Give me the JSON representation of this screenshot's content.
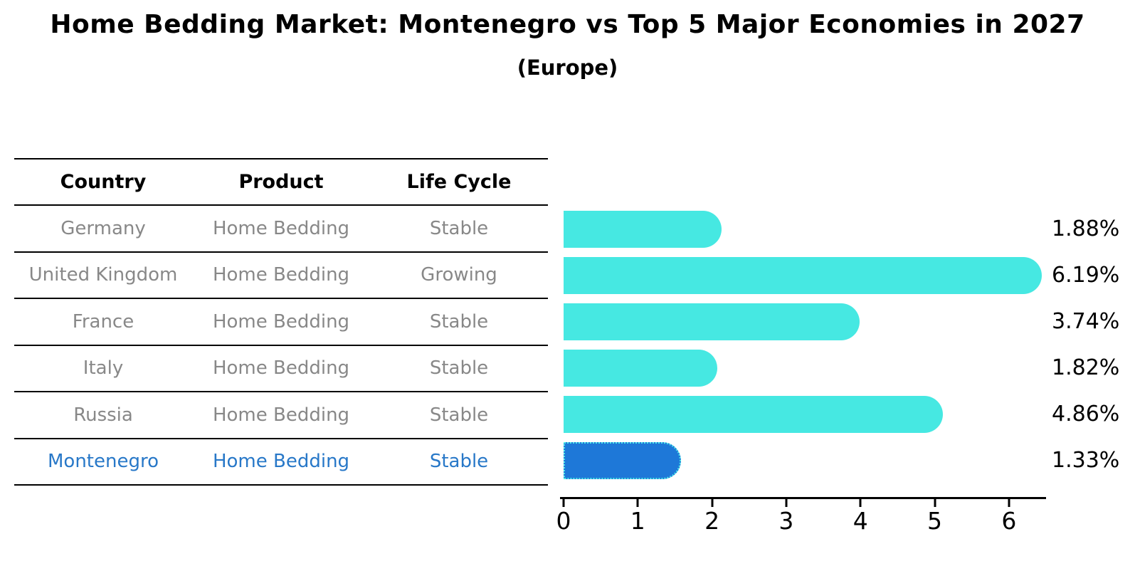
{
  "title": "Home Bedding Market: Montenegro vs Top 5 Major Economies in 2027",
  "subtitle": "(Europe)",
  "table": {
    "headers": [
      "Country",
      "Product",
      "Life Cycle"
    ],
    "rows": [
      {
        "country": "Germany",
        "product": "Home Bedding",
        "life_cycle": "Stable",
        "highlight": false
      },
      {
        "country": "United Kingdom",
        "product": "Home Bedding",
        "life_cycle": "Growing",
        "highlight": false
      },
      {
        "country": "France",
        "product": "Home Bedding",
        "life_cycle": "Stable",
        "highlight": false
      },
      {
        "country": "Italy",
        "product": "Home Bedding",
        "life_cycle": "Stable",
        "highlight": false
      },
      {
        "country": "Russia",
        "product": "Home Bedding",
        "life_cycle": "Stable",
        "highlight": false
      },
      {
        "country": "Montenegro",
        "product": "Home Bedding",
        "life_cycle": "Stable",
        "highlight": true
      }
    ]
  },
  "chart_data": {
    "type": "bar",
    "orientation": "horizontal",
    "title": "Home Bedding Market: Montenegro vs Top 5 Major Economies in 2027",
    "subtitle": "(Europe)",
    "categories": [
      "Germany",
      "United Kingdom",
      "France",
      "Italy",
      "Russia",
      "Montenegro"
    ],
    "values": [
      1.88,
      6.19,
      3.74,
      1.82,
      4.86,
      1.33
    ],
    "value_labels": [
      "1.88%",
      "6.19%",
      "3.74%",
      "1.82%",
      "4.86%",
      "1.33%"
    ],
    "unit": "percent",
    "xticks": [
      0,
      1,
      2,
      3,
      4,
      5,
      6
    ],
    "xlim": [
      0,
      6.5
    ],
    "grid": false,
    "legend": false,
    "bar_color": "#46E8E2",
    "highlight_color": "#1E78D8",
    "highlight_border_color": "#4DE9E9",
    "highlight_index": 5
  },
  "colors": {
    "background": "#FFFFFF",
    "table_text": "#888888",
    "table_highlight_text": "#2878C8",
    "axis": "#000000"
  }
}
